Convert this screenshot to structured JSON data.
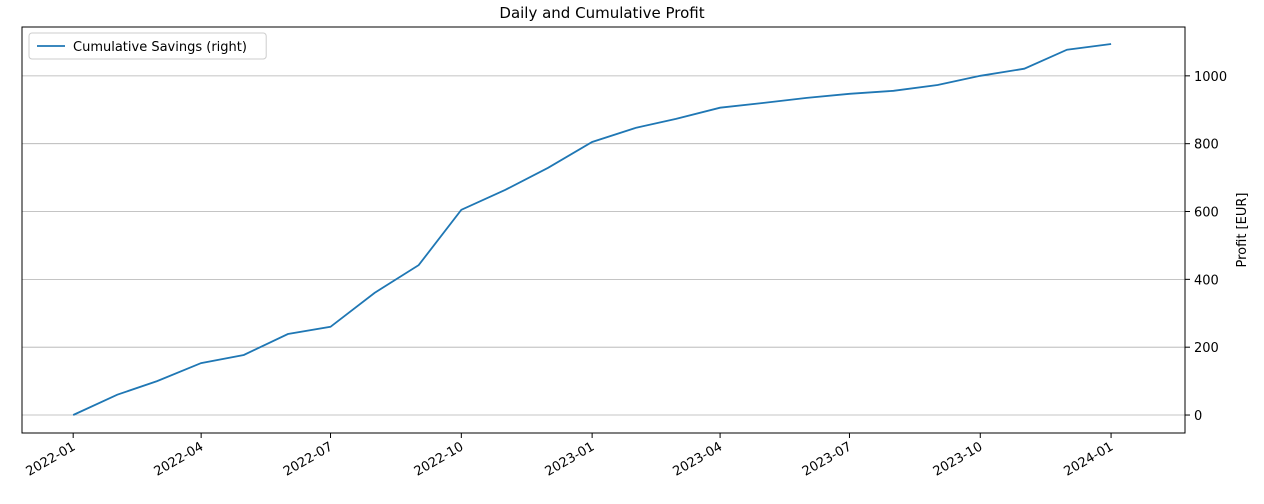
{
  "chart_data": {
    "type": "line",
    "title": "Daily and Cumulative Profit",
    "y_axis_label": "Profit [EUR]",
    "y_axis_side": "right",
    "x": [
      "2022-01",
      "2022-02",
      "2022-03",
      "2022-04",
      "2022-05",
      "2022-06",
      "2022-07",
      "2022-08",
      "2022-09",
      "2022-10",
      "2022-11",
      "2022-12",
      "2023-01",
      "2023-02",
      "2023-03",
      "2023-04",
      "2023-05",
      "2023-06",
      "2023-07",
      "2023-08",
      "2023-09",
      "2023-10",
      "2023-11",
      "2023-12",
      "2024-01"
    ],
    "series": [
      {
        "name": "Cumulative Savings (right)",
        "color": "#1f77b4",
        "values": [
          0,
          60,
          100,
          153,
          177,
          239,
          260,
          360,
          442,
          605,
          664,
          729,
          805,
          847,
          873,
          906,
          920,
          935,
          947,
          956,
          973,
          1000,
          1021,
          1077,
          1094
        ]
      }
    ],
    "xlim": [
      "2021-11-26",
      "2024-02-22"
    ],
    "xticks": [
      "2022-01",
      "2022-04",
      "2022-07",
      "2022-10",
      "2023-01",
      "2023-04",
      "2023-07",
      "2023-10",
      "2024-01"
    ],
    "ylim": [
      -53,
      1144
    ],
    "yticks": [
      0,
      200,
      400,
      600,
      800,
      1000
    ],
    "grid": true,
    "legend": "upper left"
  }
}
